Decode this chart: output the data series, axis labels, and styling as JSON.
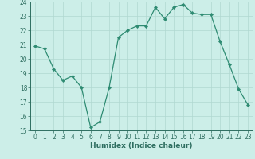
{
  "x": [
    0,
    1,
    2,
    3,
    4,
    5,
    6,
    7,
    8,
    9,
    10,
    11,
    12,
    13,
    14,
    15,
    16,
    17,
    18,
    19,
    20,
    21,
    22,
    23
  ],
  "y": [
    20.9,
    20.7,
    19.3,
    18.5,
    18.8,
    18.0,
    15.2,
    15.6,
    18.0,
    21.5,
    22.0,
    22.3,
    22.3,
    23.6,
    22.8,
    23.6,
    23.8,
    23.2,
    23.1,
    23.1,
    21.2,
    19.6,
    17.9,
    16.8
  ],
  "line_color": "#2e8b72",
  "marker": "D",
  "marker_size": 2.2,
  "bg_color": "#cceee8",
  "grid_color": "#b0d8d0",
  "xlabel": "Humidex (Indice chaleur)",
  "ylim": [
    15,
    24
  ],
  "xlim": [
    -0.5,
    23.5
  ],
  "yticks": [
    15,
    16,
    17,
    18,
    19,
    20,
    21,
    22,
    23,
    24
  ],
  "xticks": [
    0,
    1,
    2,
    3,
    4,
    5,
    6,
    7,
    8,
    9,
    10,
    11,
    12,
    13,
    14,
    15,
    16,
    17,
    18,
    19,
    20,
    21,
    22,
    23
  ],
  "tick_color": "#2e6e60",
  "label_fontsize": 6.5,
  "tick_fontsize": 5.5
}
